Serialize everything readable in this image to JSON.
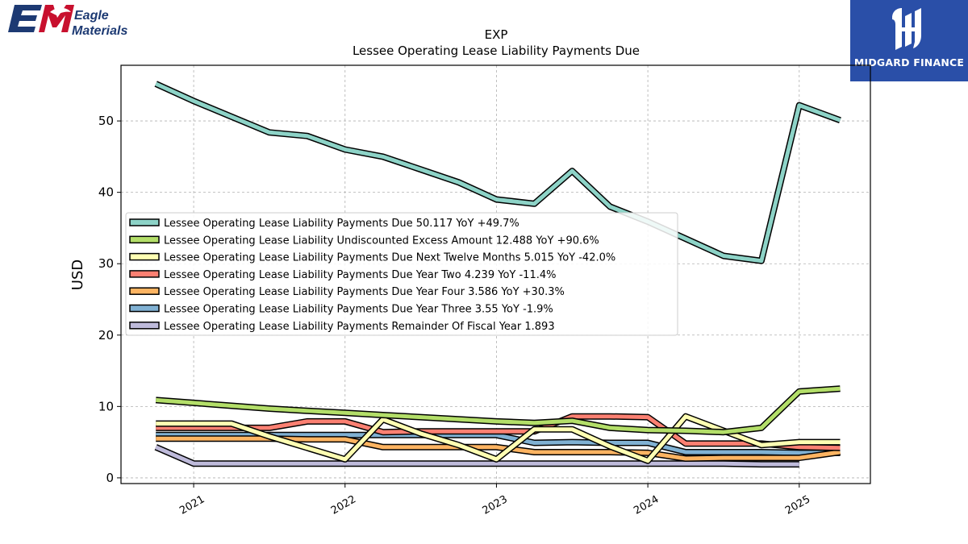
{
  "logo": {
    "line1": "Eagle",
    "line2": "Materials",
    "mark": "EM",
    "icon": "eagle-materials-logo"
  },
  "brand": {
    "name": "MIDGARD FINANCE",
    "icon": "midgard-finance-logo"
  },
  "chart_data": {
    "type": "line",
    "title": "EXP",
    "subtitle": "Lessee Operating Lease Liability Payments Due",
    "ylabel": "USD",
    "xlabel": "",
    "xlim": [
      2020.52,
      2025.47
    ],
    "ylim": [
      -0.8,
      57.8
    ],
    "xticks": [
      2021,
      2022,
      2023,
      2024,
      2025
    ],
    "xtick_labels": [
      "2021",
      "2022",
      "2023",
      "2024",
      "2025"
    ],
    "yticks": [
      0,
      10,
      20,
      30,
      40,
      50
    ],
    "ytick_labels": [
      "0",
      "10",
      "20",
      "30",
      "40",
      "50"
    ],
    "grid": true,
    "legend_position": "center-left",
    "series": [
      {
        "name": "Lessee Operating Lease Liability Payments Due",
        "legend": "Lessee Operating Lease Liability Payments Due  50.117 YoY +49.7%",
        "color": "#8dd3c7",
        "x": [
          2020.75,
          2021.0,
          2021.25,
          2021.5,
          2021.75,
          2022.0,
          2022.25,
          2022.5,
          2022.75,
          2023.0,
          2023.25,
          2023.5,
          2023.75,
          2024.0,
          2024.25,
          2024.5,
          2024.75,
          2025.0,
          2025.27
        ],
        "y": [
          55.2,
          52.8,
          50.6,
          48.4,
          47.9,
          46.0,
          45.0,
          43.2,
          41.4,
          39.0,
          38.4,
          43.0,
          38.0,
          35.9,
          33.5,
          31.1,
          30.4,
          52.2,
          50.1
        ]
      },
      {
        "name": "Lessee Operating Lease Liability Undiscounted Excess Amount",
        "legend": "Lessee Operating Lease Liability Undiscounted Excess Amount  12.488 YoY +90.6%",
        "color": "#b3de69",
        "x": [
          2020.75,
          2021.0,
          2021.25,
          2021.5,
          2021.75,
          2022.0,
          2022.25,
          2022.5,
          2022.75,
          2023.0,
          2023.25,
          2023.5,
          2023.75,
          2024.0,
          2024.25,
          2024.5,
          2024.75,
          2025.0,
          2025.27
        ],
        "y": [
          10.9,
          10.5,
          10.1,
          9.7,
          9.4,
          9.1,
          8.8,
          8.5,
          8.2,
          7.9,
          7.7,
          8.0,
          7.0,
          6.7,
          6.6,
          6.4,
          7.0,
          12.1,
          12.5
        ]
      },
      {
        "name": "Lessee Operating Lease Liability Payments Due Next Twelve Months",
        "legend": "Lessee Operating Lease Liability Payments Due Next Twelve Months  5.015 YoY -42.0%",
        "color": "#ffffb3",
        "x": [
          2020.75,
          2021.0,
          2021.25,
          2021.5,
          2021.75,
          2022.0,
          2022.25,
          2022.5,
          2022.75,
          2023.0,
          2023.25,
          2023.5,
          2023.75,
          2024.0,
          2024.25,
          2024.5,
          2024.75,
          2025.0,
          2025.27
        ],
        "y": [
          7.6,
          7.6,
          7.6,
          5.8,
          4.2,
          2.6,
          8.2,
          6.2,
          4.6,
          2.6,
          6.8,
          6.8,
          4.4,
          2.4,
          8.6,
          6.6,
          4.6,
          5.0,
          5.0
        ]
      },
      {
        "name": "Lessee Operating Lease Liability Payments Due Year Two",
        "legend": "Lessee Operating Lease Liability Payments Due Year Two  4.239 YoY -11.4%",
        "color": "#fb8072",
        "x": [
          2020.75,
          2021.0,
          2021.25,
          2021.5,
          2021.75,
          2022.0,
          2022.25,
          2022.5,
          2022.75,
          2023.0,
          2023.25,
          2023.5,
          2023.75,
          2024.0,
          2024.25,
          2024.5,
          2024.75,
          2025.0,
          2025.27
        ],
        "y": [
          7.0,
          7.0,
          7.0,
          7.0,
          7.9,
          7.9,
          6.4,
          6.5,
          6.5,
          6.5,
          6.5,
          8.6,
          8.6,
          8.5,
          4.8,
          4.8,
          4.8,
          4.3,
          4.2
        ]
      },
      {
        "name": "Lessee Operating Lease Liability Payments Due Year Four",
        "legend": "Lessee Operating Lease Liability Payments Due Year Four  3.586 YoY +30.3%",
        "color": "#fdb462",
        "x": [
          2020.75,
          2021.0,
          2021.25,
          2021.5,
          2021.75,
          2022.0,
          2022.25,
          2022.5,
          2022.75,
          2023.0,
          2023.25,
          2023.5,
          2023.75,
          2024.0,
          2024.25,
          2024.5,
          2024.75,
          2025.0,
          2025.27
        ],
        "y": [
          5.5,
          5.5,
          5.5,
          5.5,
          5.4,
          5.4,
          4.3,
          4.3,
          4.3,
          4.3,
          3.6,
          3.6,
          3.6,
          3.5,
          2.7,
          2.8,
          2.8,
          2.8,
          3.6
        ]
      },
      {
        "name": "Lessee Operating Lease Liability Payments Due Year Three",
        "legend": "Lessee Operating Lease Liability Payments Due Year Three  3.55 YoY -1.9%",
        "color": "#80b1d3",
        "x": [
          2020.75,
          2021.0,
          2021.25,
          2021.5,
          2021.75,
          2022.0,
          2022.25,
          2022.5,
          2022.75,
          2023.0,
          2023.25,
          2023.5,
          2023.75,
          2024.0,
          2024.25,
          2024.5,
          2024.75,
          2025.0,
          2025.27
        ],
        "y": [
          6.0,
          6.0,
          6.0,
          6.0,
          6.0,
          6.0,
          6.0,
          6.0,
          6.0,
          6.0,
          4.9,
          5.0,
          4.9,
          4.9,
          3.6,
          3.6,
          3.6,
          3.5,
          3.5
        ]
      },
      {
        "name": "Lessee Operating Lease Liability Payments Remainder Of Fiscal Year",
        "legend": "Lessee Operating Lease Liability Payments Remainder Of Fiscal Year  1.893",
        "color": "#bebada",
        "x": [
          2020.75,
          2021.0,
          2021.25,
          2021.5,
          2021.75,
          2022.0,
          2022.25,
          2022.5,
          2022.75,
          2023.0,
          2023.25,
          2023.5,
          2023.75,
          2024.0,
          2024.25,
          2024.5,
          2024.75,
          2025.0
        ],
        "y": [
          4.3,
          2.0,
          2.0,
          2.0,
          2.0,
          2.0,
          2.0,
          2.0,
          2.0,
          2.0,
          2.0,
          2.0,
          2.0,
          2.0,
          2.0,
          2.0,
          1.9,
          1.9
        ]
      }
    ]
  }
}
